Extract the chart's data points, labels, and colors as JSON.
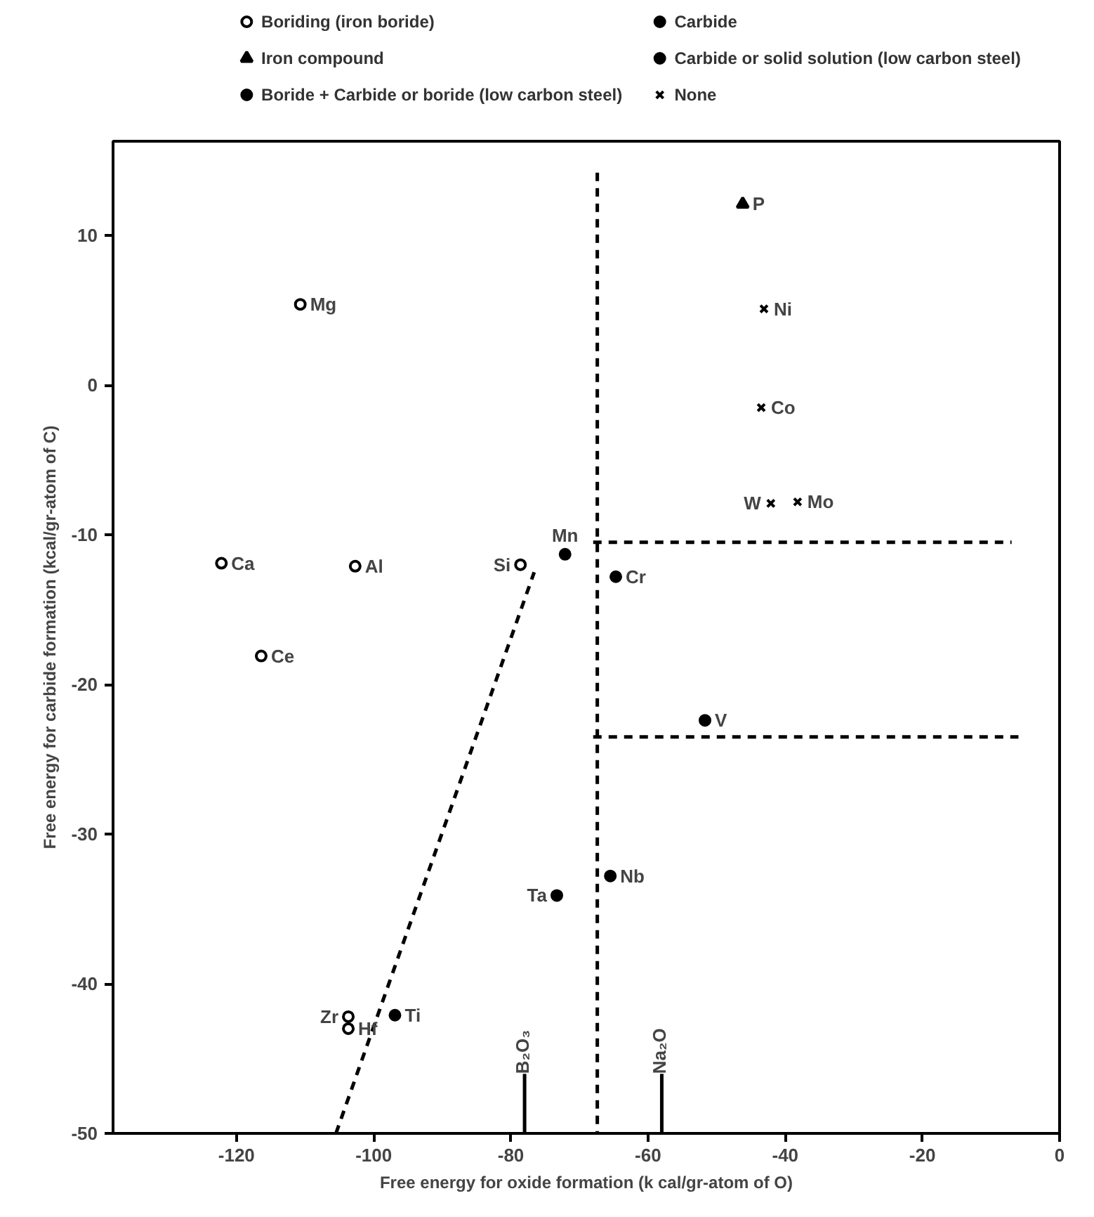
{
  "chart_data": {
    "type": "scatter",
    "xlabel": "Free energy for oxide formation (k cal/gr-atom of O)",
    "ylabel": "Free energy for carbide formation (kcal/gr-atom of C)",
    "xlim": [
      -138,
      0
    ],
    "ylim": [
      -50,
      16.3
    ],
    "xticks": [
      -120,
      -100,
      -80,
      -60,
      -40,
      -20,
      0
    ],
    "yticks": [
      -50,
      -40,
      -30,
      -20,
      -10,
      0,
      10
    ],
    "grid": false,
    "legend": "top",
    "series": [
      {
        "name": "Boriding (iron boride)",
        "color": "#ffffff",
        "marker": "circle",
        "x": [
          -110.7,
          -122.2,
          -102.7,
          -116.4,
          -78.6,
          -103.7,
          -103.7
        ],
        "values": [
          5.4,
          -11.9,
          -12.1,
          -18.1,
          -12.0,
          -42.2,
          -43.0
        ]
      },
      {
        "name": "Iron compound",
        "color": "#000000",
        "marker": "triangle",
        "x": [
          -46.2
        ],
        "values": [
          12.1
        ]
      },
      {
        "name": "Boride + Carbide or boride (low carbon steel)",
        "color": "#000000",
        "marker": "circle",
        "x": [
          -72.1,
          -73.3,
          -96.9
        ],
        "values": [
          -11.3,
          -34.1,
          -42.1
        ]
      },
      {
        "name": "Carbide",
        "color": "#000000",
        "marker": "circle",
        "x": [
          -65.5
        ],
        "values": [
          -32.8
        ]
      },
      {
        "name": "Carbide or solid solution (low carbon steel)",
        "color": "#000000",
        "marker": "circle",
        "x": [
          -64.7,
          -51.7
        ],
        "values": [
          -12.8,
          -22.4
        ]
      },
      {
        "name": "None",
        "color": "#000000",
        "marker": "cross",
        "x": [
          -43.1,
          -43.5,
          -42.1,
          -38.2
        ],
        "values": [
          5.1,
          -1.5,
          -7.9,
          -7.8
        ]
      },
      {
        "type": "line",
        "color": "#000000",
        "line_style": "dashed",
        "marker": "none",
        "x": [
          -67.4,
          -67.4
        ],
        "values": [
          14.2,
          -50
        ]
      },
      {
        "type": "line",
        "color": "#000000",
        "line_style": "dashed",
        "marker": "none",
        "x": [
          -68,
          -7
        ],
        "values": [
          -10.5,
          -10.5
        ]
      },
      {
        "type": "line",
        "color": "#000000",
        "line_style": "dashed",
        "marker": "none",
        "x": [
          -68,
          -6
        ],
        "values": [
          -23.5,
          -23.5
        ]
      },
      {
        "type": "line",
        "color": "#000000",
        "line_style": "dashed",
        "marker": "none",
        "x": [
          -105.5,
          -76.6
        ],
        "values": [
          -50,
          -12.5
        ]
      }
    ],
    "ref_lines": [
      {
        "axis": "x",
        "value": -78,
        "label": "B₂O₃"
      },
      {
        "axis": "x",
        "value": -58,
        "label": "Na₂O"
      }
    ],
    "annotations": [
      {
        "text": "Mg",
        "x": -110.7,
        "y": 5.4
      },
      {
        "text": "Ca",
        "x": -122.2,
        "y": -11.9
      },
      {
        "text": "Al",
        "x": -102.7,
        "y": -12.1
      },
      {
        "text": "Ce",
        "x": -116.4,
        "y": -18.1
      },
      {
        "text": "Si",
        "x": -78.6,
        "y": -12.0
      },
      {
        "text": "Zr",
        "x": -103.7,
        "y": -42.2
      },
      {
        "text": "Hf",
        "x": -103.7,
        "y": -43.0
      },
      {
        "text": "P",
        "x": -46.2,
        "y": 12.1
      },
      {
        "text": "Mn",
        "x": -72.1,
        "y": -11.3
      },
      {
        "text": "Ta",
        "x": -73.3,
        "y": -34.1
      },
      {
        "text": "Ti",
        "x": -96.9,
        "y": -42.1
      },
      {
        "text": "Nb",
        "x": -65.5,
        "y": -32.8
      },
      {
        "text": "Cr",
        "x": -64.7,
        "y": -12.8
      },
      {
        "text": "V",
        "x": -51.7,
        "y": -22.4
      },
      {
        "text": "Ni",
        "x": -43.1,
        "y": 5.1
      },
      {
        "text": "Co",
        "x": -43.5,
        "y": -1.5
      },
      {
        "text": "W",
        "x": -42.1,
        "y": -7.9
      },
      {
        "text": "Mo",
        "x": -38.2,
        "y": -7.8
      }
    ]
  }
}
